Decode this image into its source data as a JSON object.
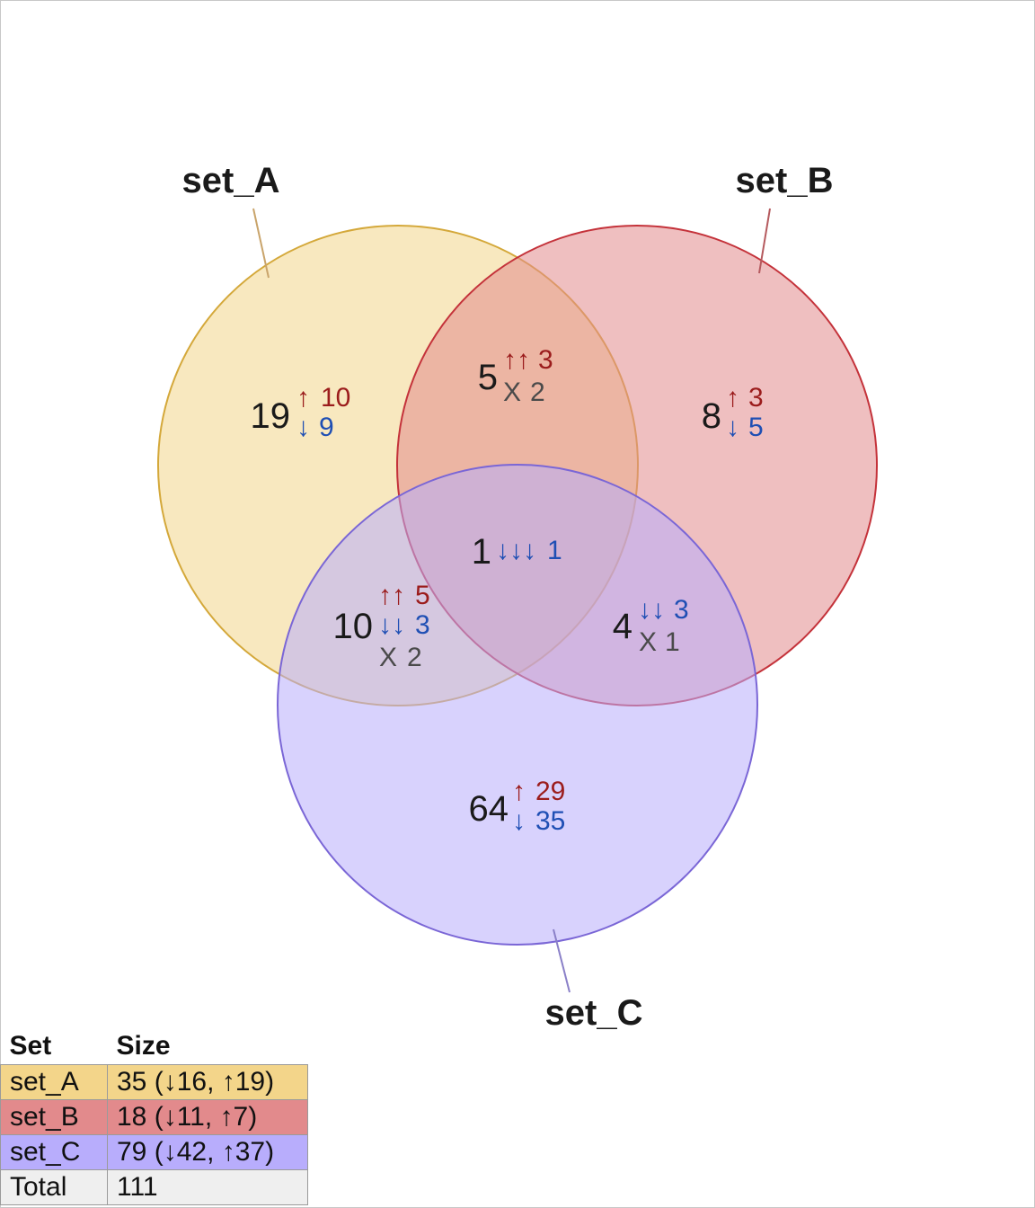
{
  "sets": [
    {
      "key": "A",
      "name": "set_A",
      "size": "35 (↓16, ↑19)",
      "color": "#f3d58a",
      "stroke": "#d4a83a",
      "label_line": "#c9a46b"
    },
    {
      "key": "B",
      "name": "set_B",
      "size": "18 (↓11, ↑7)",
      "color": "#e28a8c",
      "stroke": "#c4323a",
      "label_line": "#b55a5e"
    },
    {
      "key": "C",
      "name": "set_C",
      "size": "79 (↓42, ↑37)",
      "color": "#b8adfc",
      "stroke": "#7a66d6",
      "label_line": "#8a80c8"
    }
  ],
  "regions": [
    {
      "id": "A-only",
      "count": "19",
      "lines": [
        {
          "arrows": "↑",
          "value": "10",
          "kind": "up"
        },
        {
          "arrows": "↓",
          "value": "9",
          "kind": "down"
        }
      ]
    },
    {
      "id": "B-only",
      "count": "8",
      "lines": [
        {
          "arrows": "↑",
          "value": "3",
          "kind": "up"
        },
        {
          "arrows": "↓",
          "value": "5",
          "kind": "down"
        }
      ]
    },
    {
      "id": "C-only",
      "count": "64",
      "lines": [
        {
          "arrows": "↑",
          "value": "29",
          "kind": "up"
        },
        {
          "arrows": "↓",
          "value": "35",
          "kind": "down"
        }
      ]
    },
    {
      "id": "AB",
      "count": "5",
      "lines": [
        {
          "arrows": "↑↑",
          "value": "3",
          "kind": "up"
        },
        {
          "arrows": "X",
          "value": "2",
          "kind": "mixed"
        }
      ]
    },
    {
      "id": "AC",
      "count": "10",
      "lines": [
        {
          "arrows": "↑↑",
          "value": "5",
          "kind": "up"
        },
        {
          "arrows": "↓↓",
          "value": "3",
          "kind": "down"
        },
        {
          "arrows": "X",
          "value": "2",
          "kind": "mixed"
        }
      ]
    },
    {
      "id": "BC",
      "count": "4",
      "lines": [
        {
          "arrows": "↓↓",
          "value": "3",
          "kind": "down"
        },
        {
          "arrows": "X",
          "value": "1",
          "kind": "mixed"
        }
      ]
    },
    {
      "id": "ABC",
      "count": "1",
      "lines": [
        {
          "arrows": "↓↓↓",
          "value": "1",
          "kind": "down"
        }
      ]
    }
  ],
  "table": {
    "header_set": "Set",
    "header_size": "Size",
    "total_label": "Total",
    "total_value": "111"
  },
  "colors": {
    "up": "#9b1c1c",
    "down": "#1f4fb4",
    "mixed": "#4a4a4a",
    "total_row": "#efefef"
  }
}
